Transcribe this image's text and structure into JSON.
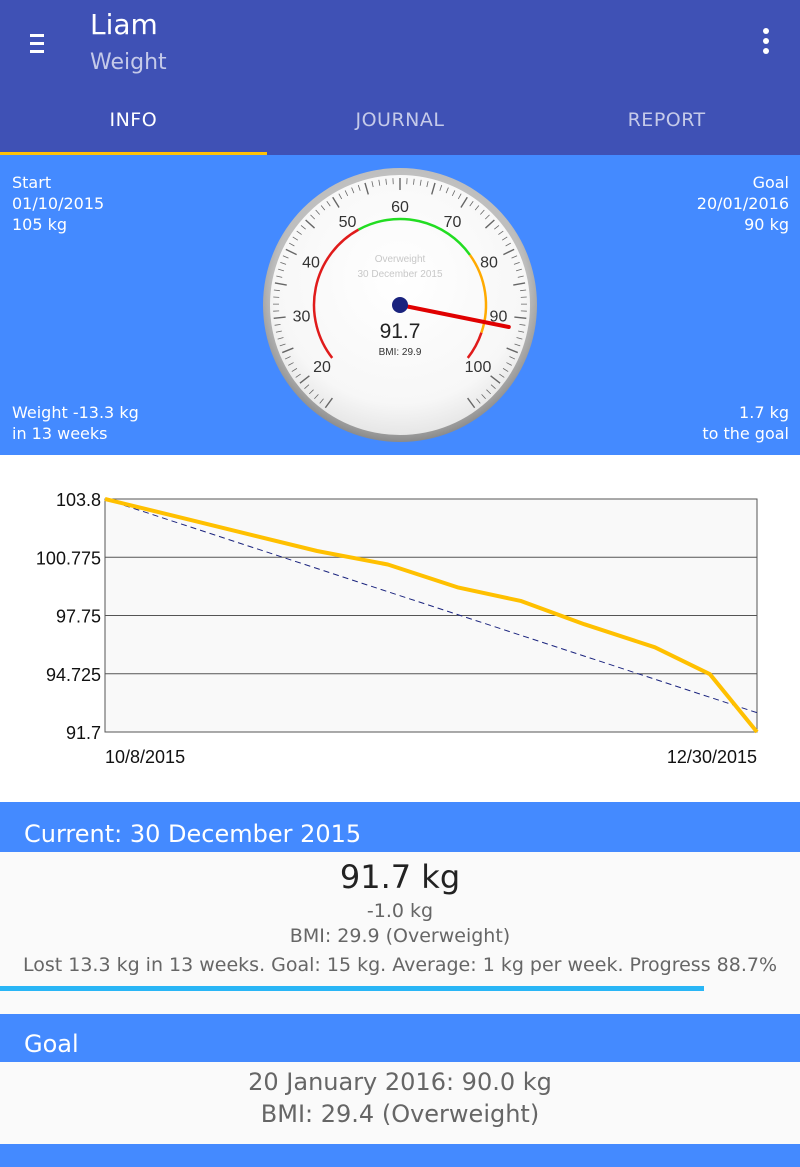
{
  "app": {
    "title": "Liam",
    "subtitle": "Weight"
  },
  "icons": {
    "menu": "hamburger-menu-icon",
    "more": "overflow-menu-icon"
  },
  "tabs": [
    {
      "label": "INFO",
      "active": true
    },
    {
      "label": "JOURNAL",
      "active": false
    },
    {
      "label": "REPORT",
      "active": false
    }
  ],
  "summary": {
    "start": {
      "label": "Start",
      "date": "01/10/2015",
      "weight": "105 kg"
    },
    "goal": {
      "label": "Goal",
      "date": "20/01/2016",
      "weight": "90 kg"
    },
    "change": {
      "line1": "Weight -13.3 kg",
      "line2": "in 13 weeks"
    },
    "remaining": {
      "line1": "1.7 kg",
      "line2": "to the goal"
    }
  },
  "gauge": {
    "status": "Overweight",
    "date": "30 December 2015",
    "value": 91.7,
    "value_text": "91.7",
    "bmi_text": "BMI: 29.9",
    "scale": [
      "20",
      "30",
      "40",
      "50",
      "60",
      "70",
      "80",
      "90",
      "100"
    ],
    "min": 15,
    "max": 105,
    "colors": {
      "red": "#e01b1b",
      "green": "#22dd22",
      "orange": "#ffaa00",
      "needle": "#e00000",
      "hub": "#1a237e"
    }
  },
  "chart_data": {
    "type": "line",
    "x_labels": [
      "10/8/2015",
      "12/30/2015"
    ],
    "y_ticks": [
      "103.8",
      "100.775",
      "97.75",
      "94.725",
      "91.7"
    ],
    "ylim": [
      91.7,
      103.8
    ],
    "series": [
      {
        "style": "solid",
        "color": "#ffc000",
        "points": [
          [
            "10/8/2015",
            103.8
          ],
          [
            "10/17/2015",
            102.9
          ],
          [
            "10/26/2015",
            102.0
          ],
          [
            "11/4/2015",
            101.1
          ],
          [
            "11/13/2015",
            100.4
          ],
          [
            "11/22/2015",
            99.2
          ],
          [
            "11/30/2015",
            98.5
          ],
          [
            "12/8/2015",
            97.3
          ],
          [
            "12/17/2015",
            96.1
          ],
          [
            "12/24/2015",
            94.7
          ],
          [
            "12/30/2015",
            91.7
          ]
        ]
      },
      {
        "style": "dashed",
        "color": "#1a237e",
        "points": [
          [
            "10/8/2015",
            103.8
          ],
          [
            "12/30/2015",
            92.7
          ]
        ]
      }
    ]
  },
  "current": {
    "header": "Current: 30 December 2015",
    "weight": "91.7 kg",
    "change": "-1.0 kg",
    "bmi": "BMI: 29.9 (Overweight)",
    "stats": "Lost 13.3 kg in 13 weeks. Goal: 15 kg. Average: 1 kg per week. Progress 88.7%",
    "progress_fraction": 0.88
  },
  "goal_card": {
    "header": "Goal",
    "line1": "20 January 2016: 90.0 kg",
    "line2": "BMI: 29.4 (Overweight)"
  }
}
